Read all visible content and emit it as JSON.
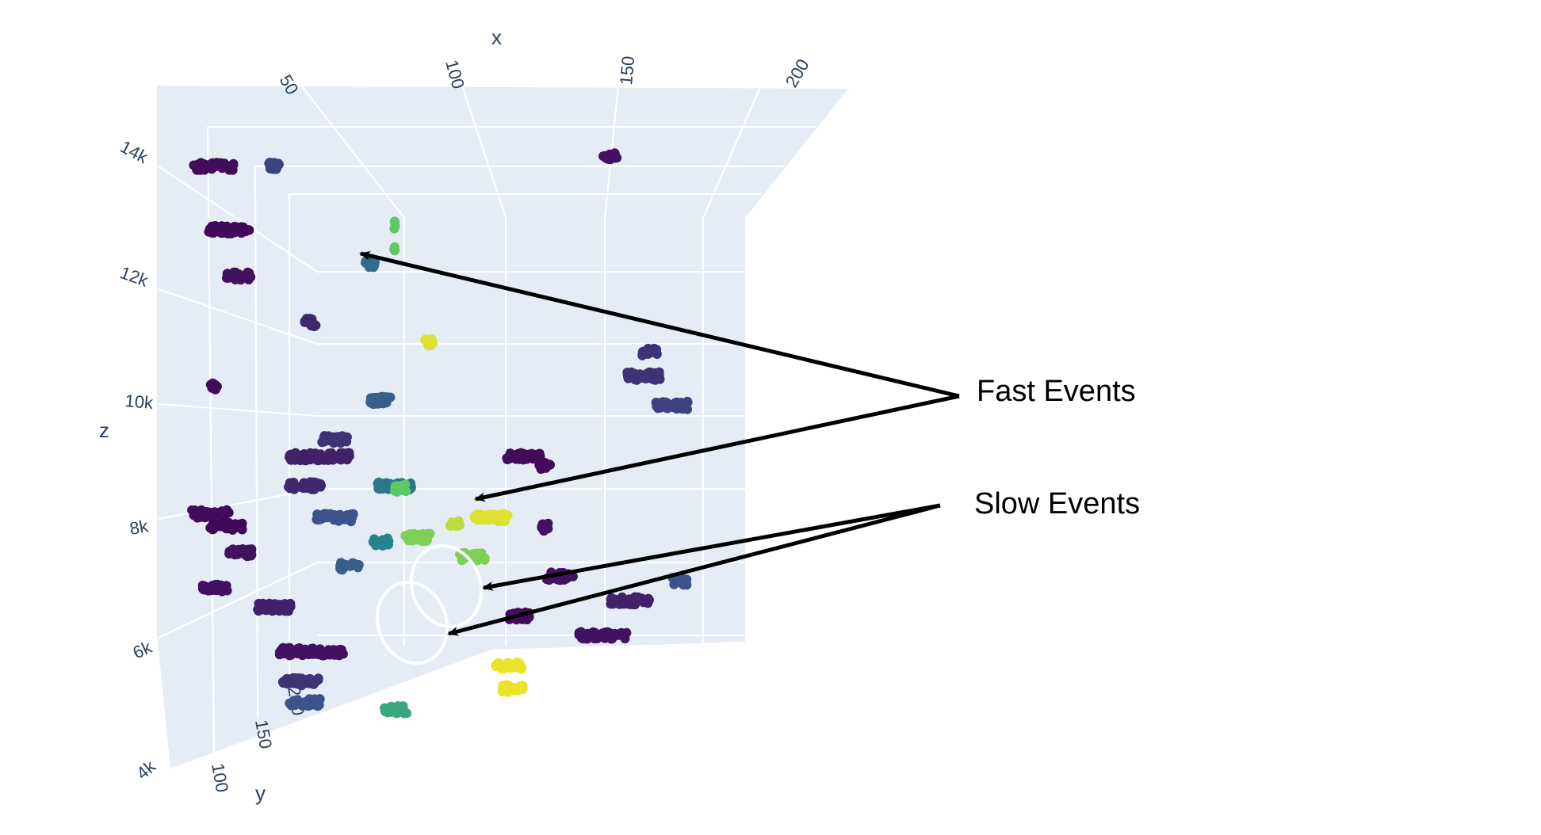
{
  "chart_data": {
    "type": "scatter",
    "subtype": "3d-scatter",
    "colorscale": "viridis",
    "background_color": "#e5ecf6",
    "grid": true,
    "xlabel": "x",
    "ylabel": "y",
    "zlabel": "z",
    "x_ticks": [
      "50",
      "100",
      "150",
      "200"
    ],
    "y_ticks": [
      "100",
      "150",
      "200"
    ],
    "z_ticks": [
      "4k",
      "6k",
      "8k",
      "10k",
      "12k",
      "14k"
    ],
    "xlim": [
      30,
      220
    ],
    "ylim": [
      70,
      230
    ],
    "zlim": [
      3800,
      15000
    ],
    "clusters": [
      {
        "x": 40,
        "y": 200,
        "z": 14200,
        "spread": 22,
        "color_value": 0.03
      },
      {
        "x": 60,
        "y": 200,
        "z": 14200,
        "spread": 6,
        "color_value": 0.2
      },
      {
        "x": 45,
        "y": 200,
        "z": 12900,
        "spread": 22,
        "color_value": 0.02
      },
      {
        "x": 48,
        "y": 200,
        "z": 11950,
        "spread": 14,
        "color_value": 0.05
      },
      {
        "x": 92,
        "y": 200,
        "z": 12200,
        "spread": 6,
        "color_value": 0.35
      },
      {
        "x": 100,
        "y": 200,
        "z": 13000,
        "spread": 1,
        "color_value": 0.75
      },
      {
        "x": 100,
        "y": 200,
        "z": 12500,
        "spread": 1,
        "color_value": 0.75
      },
      {
        "x": 72,
        "y": 200,
        "z": 11000,
        "spread": 6,
        "color_value": 0.12
      },
      {
        "x": 112,
        "y": 200,
        "z": 10600,
        "spread": 6,
        "color_value": 0.95
      },
      {
        "x": 172,
        "y": 200,
        "z": 14400,
        "spread": 8,
        "color_value": 0.05
      },
      {
        "x": 185,
        "y": 200,
        "z": 10400,
        "spread": 8,
        "color_value": 0.15
      },
      {
        "x": 183,
        "y": 200,
        "z": 9900,
        "spread": 18,
        "color_value": 0.15
      },
      {
        "x": 192,
        "y": 200,
        "z": 9300,
        "spread": 18,
        "color_value": 0.2
      },
      {
        "x": 95,
        "y": 200,
        "z": 9400,
        "spread": 12,
        "color_value": 0.3
      },
      {
        "x": 40,
        "y": 200,
        "z": 9700,
        "spread": 4,
        "color_value": 0.03
      },
      {
        "x": 80,
        "y": 200,
        "z": 8600,
        "spread": 14,
        "color_value": 0.15
      },
      {
        "x": 75,
        "y": 200,
        "z": 8250,
        "spread": 32,
        "color_value": 0.1
      },
      {
        "x": 143,
        "y": 200,
        "z": 8250,
        "spread": 18,
        "color_value": 0.03
      },
      {
        "x": 150,
        "y": 200,
        "z": 8050,
        "spread": 6,
        "color_value": 0.03
      },
      {
        "x": 70,
        "y": 200,
        "z": 7650,
        "spread": 18,
        "color_value": 0.12
      },
      {
        "x": 100,
        "y": 200,
        "z": 7650,
        "spread": 18,
        "color_value": 0.4
      },
      {
        "x": 102,
        "y": 200,
        "z": 7600,
        "spread": 6,
        "color_value": 0.75
      },
      {
        "x": 40,
        "y": 180,
        "z": 7300,
        "spread": 20,
        "color_value": 0.03
      },
      {
        "x": 45,
        "y": 180,
        "z": 7050,
        "spread": 18,
        "color_value": 0.02
      },
      {
        "x": 80,
        "y": 200,
        "z": 7000,
        "spread": 20,
        "color_value": 0.25
      },
      {
        "x": 132,
        "y": 200,
        "z": 7000,
        "spread": 18,
        "color_value": 0.95
      },
      {
        "x": 120,
        "y": 200,
        "z": 6900,
        "spread": 6,
        "color_value": 0.9
      },
      {
        "x": 150,
        "y": 200,
        "z": 6800,
        "spread": 4,
        "color_value": 0.05
      },
      {
        "x": 108,
        "y": 200,
        "z": 6600,
        "spread": 14,
        "color_value": 0.8
      },
      {
        "x": 126,
        "y": 200,
        "z": 6200,
        "spread": 14,
        "color_value": 0.8
      },
      {
        "x": 96,
        "y": 200,
        "z": 6500,
        "spread": 10,
        "color_value": 0.45
      },
      {
        "x": 85,
        "y": 200,
        "z": 6000,
        "spread": 10,
        "color_value": 0.3
      },
      {
        "x": 50,
        "y": 180,
        "z": 6500,
        "spread": 12,
        "color_value": 0.05
      },
      {
        "x": 42,
        "y": 170,
        "z": 5900,
        "spread": 14,
        "color_value": 0.05
      },
      {
        "x": 62,
        "y": 170,
        "z": 5500,
        "spread": 18,
        "color_value": 0.1
      },
      {
        "x": 155,
        "y": 200,
        "z": 5800,
        "spread": 14,
        "color_value": 0.05
      },
      {
        "x": 178,
        "y": 200,
        "z": 5300,
        "spread": 22,
        "color_value": 0.1
      },
      {
        "x": 195,
        "y": 200,
        "z": 5700,
        "spread": 8,
        "color_value": 0.25
      },
      {
        "x": 142,
        "y": 190,
        "z": 5100,
        "spread": 12,
        "color_value": 0.03
      },
      {
        "x": 170,
        "y": 190,
        "z": 4700,
        "spread": 26,
        "color_value": 0.05
      },
      {
        "x": 75,
        "y": 160,
        "z": 4700,
        "spread": 34,
        "color_value": 0.05
      },
      {
        "x": 72,
        "y": 150,
        "z": 4200,
        "spread": 20,
        "color_value": 0.15
      },
      {
        "x": 75,
        "y": 130,
        "z": 4000,
        "spread": 18,
        "color_value": 0.25
      },
      {
        "x": 105,
        "y": 130,
        "z": 3850,
        "spread": 12,
        "color_value": 0.6
      },
      {
        "x": 140,
        "y": 170,
        "z": 4300,
        "spread": 14,
        "color_value": 0.97
      },
      {
        "x": 142,
        "y": 160,
        "z": 3950,
        "spread": 12,
        "color_value": 0.97
      }
    ],
    "annotations": [
      {
        "text": "Fast Events",
        "targets": 2
      },
      {
        "text": "Slow Events",
        "targets": 2
      }
    ]
  }
}
